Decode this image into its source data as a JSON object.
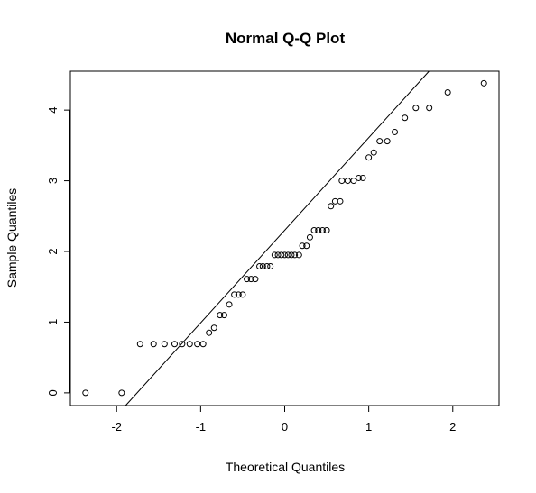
{
  "chart_data": {
    "type": "scatter",
    "title": "Normal Q-Q Plot",
    "xlabel": "Theoretical Quantiles",
    "ylabel": "Sample Quantiles",
    "xlim": [
      -2.55,
      2.55
    ],
    "ylim": [
      -0.18,
      4.55
    ],
    "x_ticks": [
      -2,
      -1,
      0,
      1,
      2
    ],
    "y_ticks": [
      0,
      1,
      2,
      3,
      4
    ],
    "x_tick_labels": [
      "-2",
      "-1",
      "0",
      "1",
      "2"
    ],
    "y_tick_labels": [
      "0",
      "1",
      "2",
      "3",
      "4"
    ],
    "grid": false,
    "legend": "none",
    "reference_line": {
      "intercept": 2.3,
      "slope": 1.31
    },
    "points": [
      {
        "x": -2.37,
        "y": 0.0
      },
      {
        "x": -1.94,
        "y": 0.0
      },
      {
        "x": -1.72,
        "y": 0.69
      },
      {
        "x": -1.56,
        "y": 0.69
      },
      {
        "x": -1.43,
        "y": 0.69
      },
      {
        "x": -1.31,
        "y": 0.69
      },
      {
        "x": -1.22,
        "y": 0.69
      },
      {
        "x": -1.13,
        "y": 0.69
      },
      {
        "x": -1.04,
        "y": 0.69
      },
      {
        "x": -0.97,
        "y": 0.69
      },
      {
        "x": -0.9,
        "y": 0.85
      },
      {
        "x": -0.84,
        "y": 0.92
      },
      {
        "x": -0.77,
        "y": 1.1
      },
      {
        "x": -0.72,
        "y": 1.1
      },
      {
        "x": -0.66,
        "y": 1.25
      },
      {
        "x": -0.6,
        "y": 1.39
      },
      {
        "x": -0.55,
        "y": 1.39
      },
      {
        "x": -0.5,
        "y": 1.39
      },
      {
        "x": -0.45,
        "y": 1.61
      },
      {
        "x": -0.4,
        "y": 1.61
      },
      {
        "x": -0.35,
        "y": 1.61
      },
      {
        "x": -0.3,
        "y": 1.79
      },
      {
        "x": -0.26,
        "y": 1.79
      },
      {
        "x": -0.21,
        "y": 1.79
      },
      {
        "x": -0.17,
        "y": 1.79
      },
      {
        "x": -0.12,
        "y": 1.95
      },
      {
        "x": -0.08,
        "y": 1.95
      },
      {
        "x": -0.04,
        "y": 1.95
      },
      {
        "x": 0.0,
        "y": 1.95
      },
      {
        "x": 0.04,
        "y": 1.95
      },
      {
        "x": 0.08,
        "y": 1.95
      },
      {
        "x": 0.12,
        "y": 1.95
      },
      {
        "x": 0.17,
        "y": 1.95
      },
      {
        "x": 0.21,
        "y": 2.08
      },
      {
        "x": 0.26,
        "y": 2.08
      },
      {
        "x": 0.3,
        "y": 2.2
      },
      {
        "x": 0.35,
        "y": 2.3
      },
      {
        "x": 0.4,
        "y": 2.3
      },
      {
        "x": 0.45,
        "y": 2.3
      },
      {
        "x": 0.5,
        "y": 2.3
      },
      {
        "x": 0.55,
        "y": 2.64
      },
      {
        "x": 0.6,
        "y": 2.71
      },
      {
        "x": 0.66,
        "y": 2.71
      },
      {
        "x": 0.68,
        "y": 3.0
      },
      {
        "x": 0.75,
        "y": 3.0
      },
      {
        "x": 0.82,
        "y": 3.0
      },
      {
        "x": 0.88,
        "y": 3.04
      },
      {
        "x": 0.93,
        "y": 3.04
      },
      {
        "x": 1.0,
        "y": 3.33
      },
      {
        "x": 1.06,
        "y": 3.4
      },
      {
        "x": 1.13,
        "y": 3.56
      },
      {
        "x": 1.22,
        "y": 3.56
      },
      {
        "x": 1.31,
        "y": 3.69
      },
      {
        "x": 1.43,
        "y": 3.89
      },
      {
        "x": 1.56,
        "y": 4.03
      },
      {
        "x": 1.72,
        "y": 4.03
      },
      {
        "x": 1.94,
        "y": 4.25
      },
      {
        "x": 2.37,
        "y": 4.38
      }
    ]
  }
}
